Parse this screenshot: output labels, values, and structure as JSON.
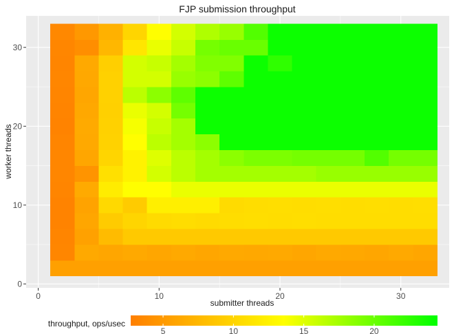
{
  "chart_data": {
    "type": "heatmap",
    "title": "FJP submission throughput",
    "xlabel": "submitter threads",
    "ylabel": "worker threads",
    "xlim": [
      -1,
      34
    ],
    "ylim": [
      -0.5,
      34
    ],
    "x_ticks": [
      0,
      10,
      20,
      30
    ],
    "y_ticks": [
      0,
      10,
      20,
      30
    ],
    "x_tick_labels": [
      "0",
      "10",
      "20",
      "30"
    ],
    "y_tick_labels": [
      "0",
      "10",
      "20",
      "30"
    ],
    "x": [
      2,
      4,
      6,
      8,
      10,
      12,
      14,
      16,
      18,
      20,
      22,
      24,
      26,
      28,
      30,
      32
    ],
    "y": [
      2,
      4,
      6,
      8,
      10,
      12,
      14,
      16,
      18,
      20,
      22,
      24,
      26,
      28,
      30,
      32
    ],
    "values_note": "z[row][col]; rows follow y (worker threads), columns follow x (submitter threads)",
    "z": [
      [
        5.5,
        5.5,
        5.5,
        5.5,
        5.5,
        5.5,
        5.5,
        5.5,
        5.5,
        5.5,
        5.5,
        5.5,
        5.5,
        5.5,
        5.5,
        5.5
      ],
      [
        3.3,
        6.3,
        6.0,
        6.3,
        6.0,
        6.3,
        6.0,
        6.3,
        6.2,
        6.3,
        6.0,
        6.3,
        6.2,
        6.0,
        6.3,
        6.0
      ],
      [
        3.2,
        5.6,
        7.8,
        9.0,
        9.0,
        9.0,
        9.0,
        9.0,
        9.0,
        9.0,
        9.0,
        9.0,
        9.0,
        9.0,
        9.0,
        9.0
      ],
      [
        3.0,
        6.0,
        9.2,
        10.0,
        10.5,
        10.7,
        10.5,
        10.7,
        10.8,
        10.7,
        10.8,
        10.7,
        10.7,
        10.7,
        10.7,
        10.7
      ],
      [
        3.0,
        5.8,
        10.4,
        9.2,
        12.2,
        12.2,
        12.2,
        10.5,
        10.7,
        10.8,
        10.7,
        10.8,
        10.7,
        10.8,
        10.7,
        10.8
      ],
      [
        3.2,
        6.4,
        12.0,
        13.5,
        13.5,
        14.5,
        14.5,
        14.5,
        14.5,
        14.5,
        14.5,
        14.5,
        14.5,
        14.5,
        14.5,
        14.5
      ],
      [
        3.3,
        4.5,
        11.0,
        12.5,
        15.5,
        16.5,
        17.5,
        17.5,
        17.5,
        17.5,
        17.5,
        18.0,
        18.0,
        18.0,
        18.0,
        18.0
      ],
      [
        3.3,
        6.0,
        10.0,
        12.5,
        15.0,
        16.5,
        17.5,
        18.5,
        19.2,
        19.2,
        19.5,
        19.5,
        19.5,
        21.0,
        19.5,
        19.5
      ],
      [
        3.2,
        6.3,
        9.8,
        13.5,
        16.5,
        17.5,
        18.5,
        24.0,
        24.0,
        24.0,
        24.0,
        24.0,
        24.0,
        24.0,
        24.0,
        24.0
      ],
      [
        3.0,
        6.4,
        9.7,
        14.0,
        16.0,
        17.5,
        24.0,
        24.0,
        24.0,
        24.0,
        24.0,
        24.0,
        24.0,
        24.0,
        24.0,
        24.0
      ],
      [
        3.1,
        6.2,
        9.6,
        14.5,
        15.5,
        19.5,
        24.0,
        24.0,
        24.0,
        24.0,
        24.0,
        24.0,
        24.0,
        24.0,
        24.0,
        24.0
      ],
      [
        3.2,
        6.0,
        9.7,
        16.5,
        18.5,
        20.5,
        24.0,
        24.0,
        24.0,
        24.0,
        24.0,
        24.0,
        24.0,
        24.0,
        24.0,
        24.0
      ],
      [
        3.3,
        6.2,
        9.7,
        15.5,
        15.5,
        18.0,
        18.5,
        20.5,
        24.0,
        24.0,
        24.0,
        24.0,
        24.0,
        24.0,
        24.0,
        24.0
      ],
      [
        3.2,
        6.3,
        9.5,
        15.5,
        16.0,
        17.5,
        19.0,
        19.0,
        24.0,
        22.5,
        24.0,
        24.0,
        24.0,
        24.0,
        24.0,
        24.0
      ],
      [
        3.3,
        4.0,
        7.5,
        11.5,
        14.5,
        16.0,
        19.5,
        20.0,
        20.0,
        24.0,
        24.0,
        24.0,
        24.0,
        24.0,
        24.0,
        24.0
      ],
      [
        3.5,
        4.8,
        7.0,
        10.0,
        13.5,
        15.5,
        17.0,
        18.0,
        21.0,
        24.0,
        24.0,
        24.0,
        24.0,
        24.0,
        24.0,
        24.0
      ]
    ],
    "colorbar": {
      "label": "throughput, ops/usec",
      "ticks": [
        5,
        10,
        15,
        20
      ],
      "tick_labels": [
        "5",
        "10",
        "15",
        "20"
      ],
      "range": [
        2.7,
        24.5
      ],
      "colors": [
        "#ff7f00",
        "#ffff00",
        "#00ff00"
      ],
      "placement": "bottom"
    },
    "grid": true,
    "panel_background": "#ebebeb",
    "grid_color": "#ffffff"
  }
}
